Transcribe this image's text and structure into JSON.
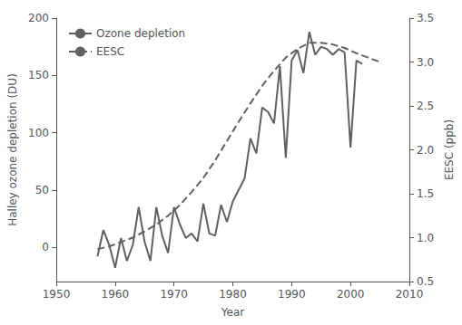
{
  "chart_data": {
    "type": "line",
    "xlabel": "Year",
    "ylabel": "Halley ozone depletion (DU)",
    "y2label": "EESC (ppb)",
    "xlim": [
      1950,
      2010
    ],
    "xticks": [
      1950,
      1960,
      1970,
      1980,
      1990,
      2000,
      2010
    ],
    "ylim": [
      -30,
      200
    ],
    "yticks": [
      0,
      50,
      100,
      150,
      200
    ],
    "y2lim": [
      0.5,
      3.5
    ],
    "y2ticks": [
      0.5,
      {
        "value": 1.0,
        "label": "1.0"
      },
      1.5,
      {
        "value": 2.0,
        "label": "2.0"
      },
      2.5,
      {
        "value": 3.0,
        "label": "3.0"
      },
      3.5
    ],
    "grid": false,
    "legend": "upper left",
    "series": [
      {
        "name": "Ozone depletion",
        "color": "#606060",
        "line_style": "solid",
        "axis": "y",
        "x": [
          1957,
          1958,
          1959,
          1960,
          1961,
          1962,
          1963,
          1964,
          1965,
          1966,
          1967,
          1968,
          1969,
          1970,
          1971,
          1972,
          1973,
          1974,
          1975,
          1976,
          1977,
          1978,
          1979,
          1980,
          1981,
          1982,
          1983,
          1984,
          1985,
          1986,
          1987,
          1988,
          1989,
          1990,
          1991,
          1992,
          1993,
          1994,
          1995,
          1996,
          1997,
          1998,
          1999,
          2000,
          2001,
          2002
        ],
        "values": [
          -8,
          15,
          2,
          -18,
          8,
          -12,
          2,
          35,
          5,
          -12,
          35,
          10,
          -5,
          35,
          20,
          8,
          12,
          5,
          38,
          12,
          10,
          37,
          22,
          40,
          50,
          60,
          95,
          82,
          122,
          118,
          108,
          158,
          78,
          163,
          172,
          152,
          188,
          168,
          175,
          173,
          168,
          173,
          170,
          87,
          163,
          160
        ]
      },
      {
        "name": "EESC",
        "color": "#606060",
        "line_style": "dashed",
        "axis": "y2",
        "x": [
          1957,
          1959,
          1961,
          1963,
          1965,
          1967,
          1969,
          1971,
          1973,
          1975,
          1977,
          1979,
          1981,
          1983,
          1985,
          1987,
          1989,
          1991,
          1993,
          1995,
          1997,
          1999,
          2001,
          2003,
          2005
        ],
        "values": [
          0.87,
          0.9,
          0.95,
          1.0,
          1.07,
          1.15,
          1.25,
          1.37,
          1.52,
          1.68,
          1.88,
          2.1,
          2.32,
          2.53,
          2.73,
          2.9,
          3.05,
          3.15,
          3.22,
          3.22,
          3.2,
          3.16,
          3.1,
          3.05,
          3.0
        ]
      }
    ]
  }
}
